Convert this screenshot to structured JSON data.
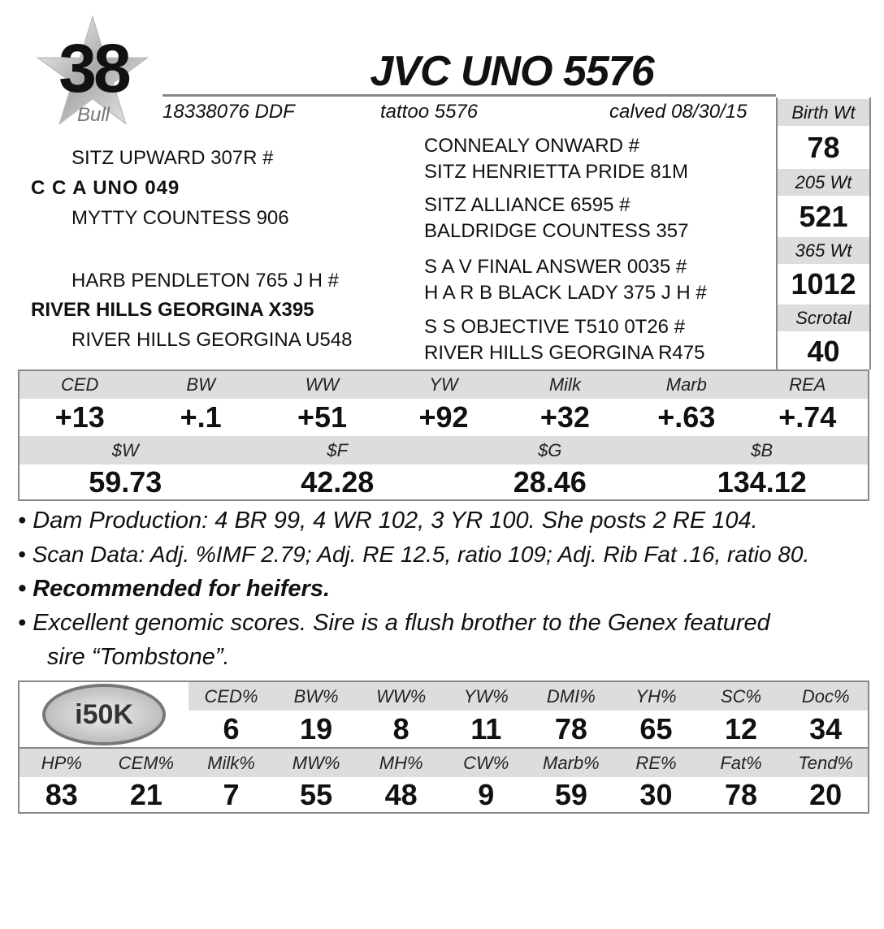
{
  "lot": {
    "number": "38",
    "sex": "Bull"
  },
  "title": "JVC UNO 5576",
  "info": {
    "registration": "18338076 DDF",
    "tattoo": "tattoo 5576",
    "calved": "calved 08/30/15"
  },
  "pedigree": {
    "sire": "C C A UNO 049",
    "sire_sire": "SITZ UPWARD 307R #",
    "sire_dam": "MYTTY COUNTESS 906",
    "dam": "RIVER HILLS GEORGINA X395",
    "dam_sire": "HARB PENDLETON 765 J H #",
    "dam_dam": "RIVER HILLS GEORGINA U548",
    "ss_sire": "CONNEALY ONWARD #",
    "ss_dam": "SITZ HENRIETTA PRIDE 81M",
    "sd_sire": "SITZ ALLIANCE 6595 #",
    "sd_dam": "BALDRIDGE COUNTESS 357",
    "ds_sire": "S A V FINAL ANSWER 0035 #",
    "ds_dam": "H A R B BLACK LADY 375 J H #",
    "dd_sire": "S S OBJECTIVE T510 0T26 #",
    "dd_dam": "RIVER HILLS GEORGINA R475"
  },
  "weights": [
    {
      "label": "Birth Wt",
      "value": "78"
    },
    {
      "label": "205 Wt",
      "value": "521"
    },
    {
      "label": "365 Wt",
      "value": "1012"
    },
    {
      "label": "Scrotal",
      "value": "40"
    }
  ],
  "epds": [
    {
      "label": "CED",
      "value": "+13"
    },
    {
      "label": "BW",
      "value": "+.1"
    },
    {
      "label": "WW",
      "value": "+51"
    },
    {
      "label": "YW",
      "value": "+92"
    },
    {
      "label": "Milk",
      "value": "+32"
    },
    {
      "label": "Marb",
      "value": "+.63"
    },
    {
      "label": "REA",
      "value": "+.74"
    }
  ],
  "indexes": [
    {
      "label": "$W",
      "value": "59.73"
    },
    {
      "label": "$F",
      "value": "42.28"
    },
    {
      "label": "$G",
      "value": "28.46"
    },
    {
      "label": "$B",
      "value": "134.12"
    }
  ],
  "notes": [
    "• Dam Production: 4 BR 99, 4 WR 102, 3 YR 100. She posts 2 RE 104.",
    "• Scan Data: Adj. %IMF 2.79; Adj. RE 12.5, ratio 109; Adj. Rib Fat .16, ratio 80.",
    "• Recommended for heifers.",
    "• Excellent genomic scores. Sire is a flush brother to the Genex featured",
    "sire “Tombstone”."
  ],
  "genomics": {
    "logo": "i50K",
    "row1": [
      {
        "label": "CED%",
        "value": "6"
      },
      {
        "label": "BW%",
        "value": "19"
      },
      {
        "label": "WW%",
        "value": "8"
      },
      {
        "label": "YW%",
        "value": "11"
      },
      {
        "label": "DMI%",
        "value": "78"
      },
      {
        "label": "YH%",
        "value": "65"
      },
      {
        "label": "SC%",
        "value": "12"
      },
      {
        "label": "Doc%",
        "value": "34"
      }
    ],
    "row2": [
      {
        "label": "HP%",
        "value": "83"
      },
      {
        "label": "CEM%",
        "value": "21"
      },
      {
        "label": "Milk%",
        "value": "7"
      },
      {
        "label": "MW%",
        "value": "55"
      },
      {
        "label": "MH%",
        "value": "48"
      },
      {
        "label": "CW%",
        "value": "9"
      },
      {
        "label": "Marb%",
        "value": "59"
      },
      {
        "label": "RE%",
        "value": "30"
      },
      {
        "label": "Fat%",
        "value": "78"
      },
      {
        "label": "Tend%",
        "value": "20"
      }
    ]
  }
}
